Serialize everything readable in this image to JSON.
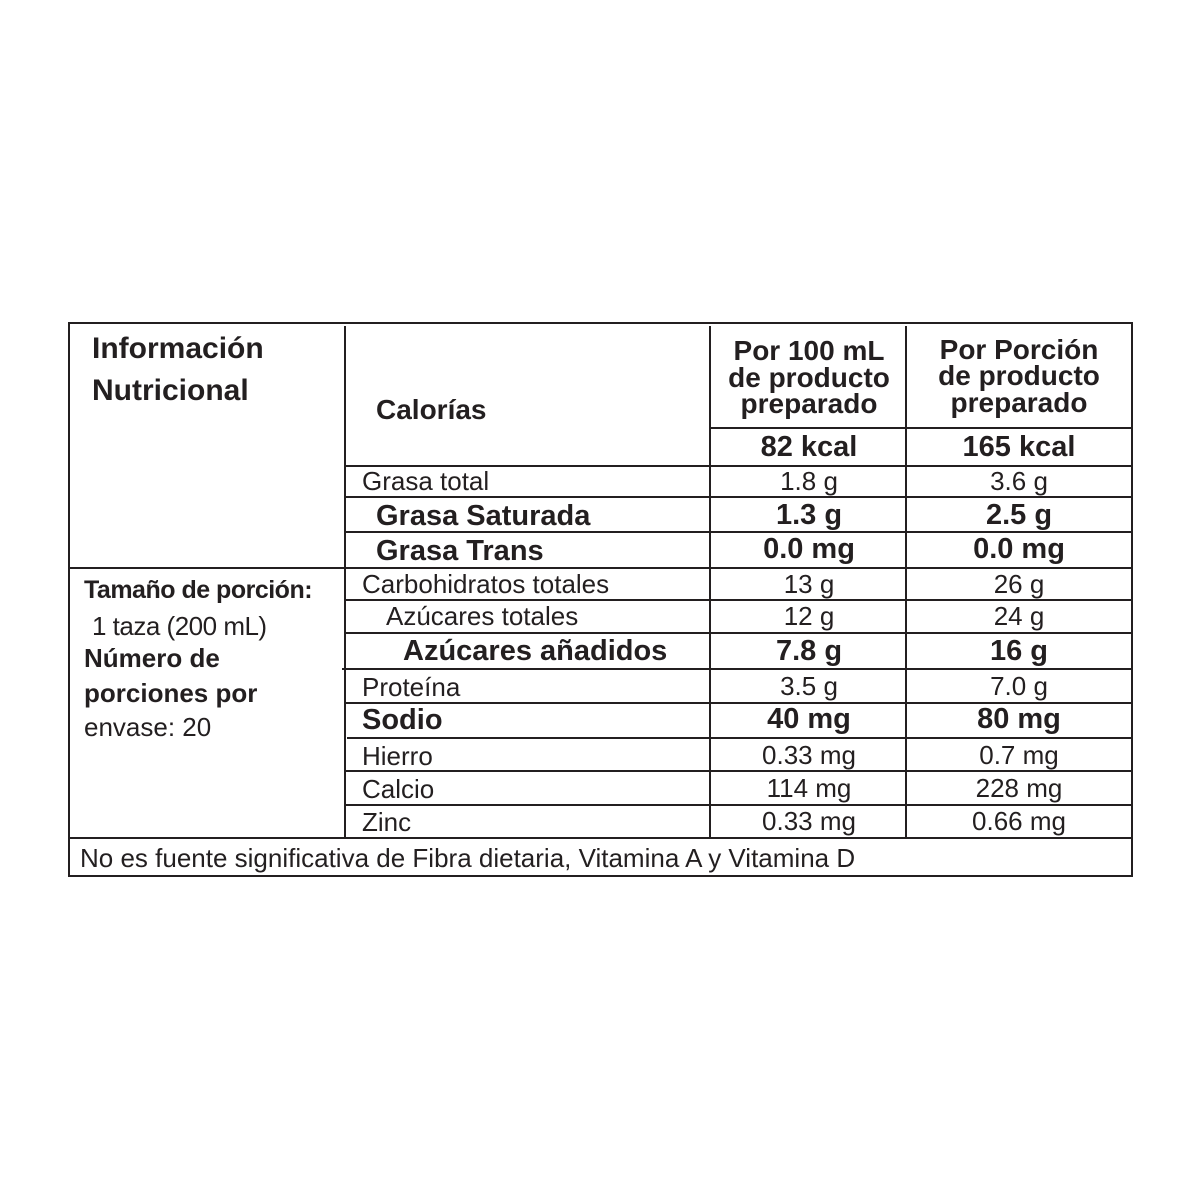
{
  "label": {
    "title_line1": "Información",
    "title_line2": "Nutricional",
    "calories_label": "Calorías",
    "col1_header": [
      "Por 100 mL",
      "de producto",
      "preparado"
    ],
    "col2_header": [
      "Por Porción",
      "de producto",
      "preparado"
    ],
    "calories_100ml": "82 kcal",
    "calories_portion": "165 kcal",
    "serving": {
      "size_label": "Tamaño de porción:",
      "size_value": "1 taza (200 mL)",
      "servings_label_1": "Número de",
      "servings_label_2": "porciones por",
      "servings_value": "envase: 20"
    },
    "rows": [
      {
        "name": "Grasa total",
        "per100": "1.8 g",
        "portion": "3.6 g",
        "bold": false
      },
      {
        "name": "Grasa Saturada",
        "per100": "1.3 g",
        "portion": "2.5 g",
        "bold": true
      },
      {
        "name": "Grasa Trans",
        "per100": "0.0 mg",
        "portion": "0.0 mg",
        "bold": true
      },
      {
        "name": "Carbohidratos totales",
        "per100": "13 g",
        "portion": "26 g",
        "bold": false
      },
      {
        "name": "Azúcares totales",
        "per100": "12 g",
        "portion": "24 g",
        "bold": false
      },
      {
        "name": "Azúcares añadidos",
        "per100": "7.8 g",
        "portion": "16 g",
        "bold": true
      },
      {
        "name": "Proteína",
        "per100": "3.5 g",
        "portion": "7.0 g",
        "bold": false
      },
      {
        "name": "Sodio",
        "per100": "40 mg",
        "portion": "80 mg",
        "bold": true
      },
      {
        "name": "Hierro",
        "per100": "0.33 mg",
        "portion": "0.7 mg",
        "bold": false
      },
      {
        "name": "Calcio",
        "per100": "114 mg",
        "portion": "228 mg",
        "bold": false
      },
      {
        "name": "Zinc",
        "per100": "0.33 mg",
        "portion": "0.66 mg",
        "bold": false
      }
    ],
    "footer": "No es fuente significativa de Fibra dietaria, Vitamina A y Vitamina D"
  }
}
